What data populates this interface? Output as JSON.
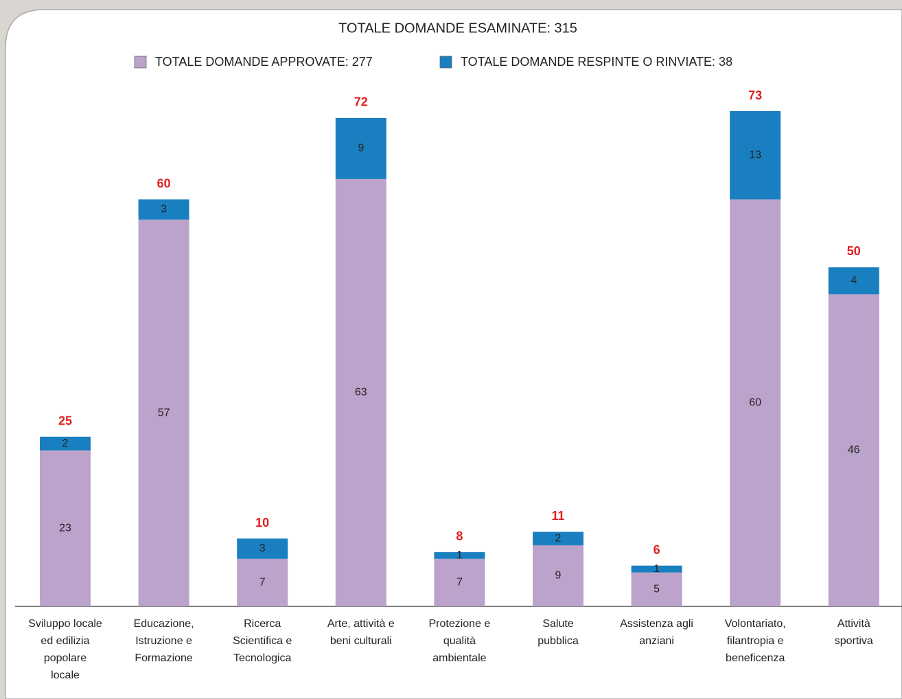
{
  "chart_data": {
    "type": "stacked_bar",
    "title": "TOTALE DOMANDE ESAMINATE: 315",
    "categories": [
      "Sviluppo locale\ned edilizia\npopolare\nlocale",
      "Educazione,\nIstruzione e\nFormazione",
      "Ricerca\nScientifica e\nTecnologica",
      "Arte, attività e\nbeni culturali",
      "Protezione e\nqualità\nambientale",
      "Salute\npubblica",
      "Assistenza agli\nanziani",
      "Volontariato,\nfilantropia e\nbeneficenza",
      "Attività\nsportiva"
    ],
    "series": [
      {
        "name": "TOTALE DOMANDE APPROVATE: 277",
        "color": "#bba3cb",
        "values": [
          23,
          57,
          7,
          63,
          7,
          9,
          5,
          60,
          46
        ]
      },
      {
        "name": "TOTALE DOMANDE RESPINTE O RINVIATE: 38",
        "color": "#1a7fc1",
        "values": [
          2,
          3,
          3,
          9,
          1,
          2,
          1,
          13,
          4
        ]
      }
    ],
    "totals": [
      25,
      60,
      10,
      72,
      8,
      11,
      6,
      73,
      50
    ],
    "ylim": [
      0,
      73
    ]
  }
}
